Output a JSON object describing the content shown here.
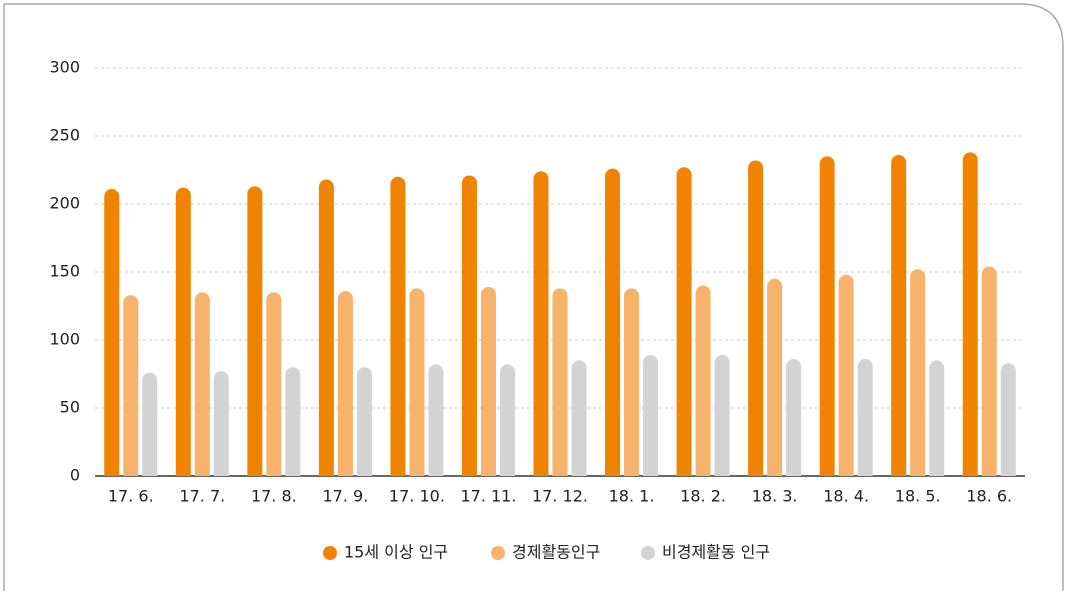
{
  "chart_data": {
    "type": "bar",
    "categories": [
      "17. 6.",
      "17. 7.",
      "17. 8.",
      "17. 9.",
      "17. 10.",
      "17. 11.",
      "17. 12.",
      "18. 1.",
      "18. 2.",
      "18. 3.",
      "18. 4.",
      "18. 5.",
      "18. 6."
    ],
    "series": [
      {
        "name": "15세 이상 인구",
        "color": "#f08300",
        "values": [
          211,
          212,
          213,
          218,
          220,
          221,
          224,
          226,
          227,
          232,
          235,
          236,
          238
        ]
      },
      {
        "name": "경제활동인구",
        "color": "#f7b26b",
        "values": [
          133,
          135,
          135,
          136,
          138,
          139,
          138,
          138,
          140,
          145,
          148,
          152,
          154
        ]
      },
      {
        "name": "비경제활동 인구",
        "color": "#d3d3d3",
        "values": [
          76,
          77,
          80,
          80,
          82,
          82,
          85,
          89,
          89,
          86,
          86,
          85,
          83
        ]
      }
    ],
    "ylim": [
      0,
      300
    ],
    "yticks": [
      0,
      50,
      100,
      150,
      200,
      250,
      300
    ],
    "grid": true,
    "legend": "bottom"
  }
}
